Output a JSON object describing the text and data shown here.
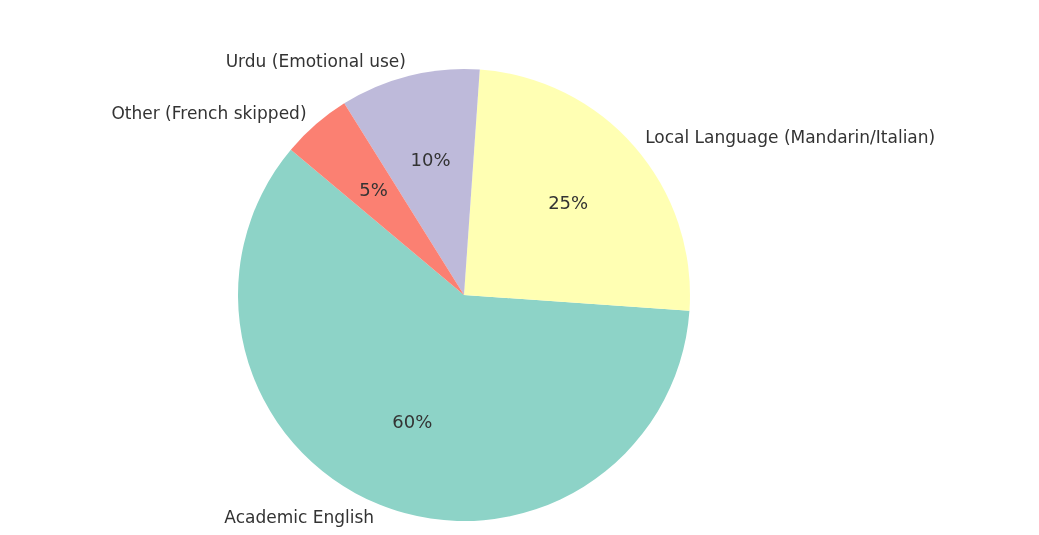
{
  "chart_data": {
    "type": "pie",
    "categories": [
      "Academic English",
      "Local Language (Mandarin/Italian)",
      "Urdu (Emotional use)",
      "Other (French skipped)"
    ],
    "values": [
      60,
      25,
      10,
      5
    ],
    "colors": [
      "#8dd3c7",
      "#ffffb3",
      "#bebada",
      "#fb8072"
    ],
    "value_labels": [
      "60%",
      "25%",
      "10%",
      "5%"
    ]
  }
}
